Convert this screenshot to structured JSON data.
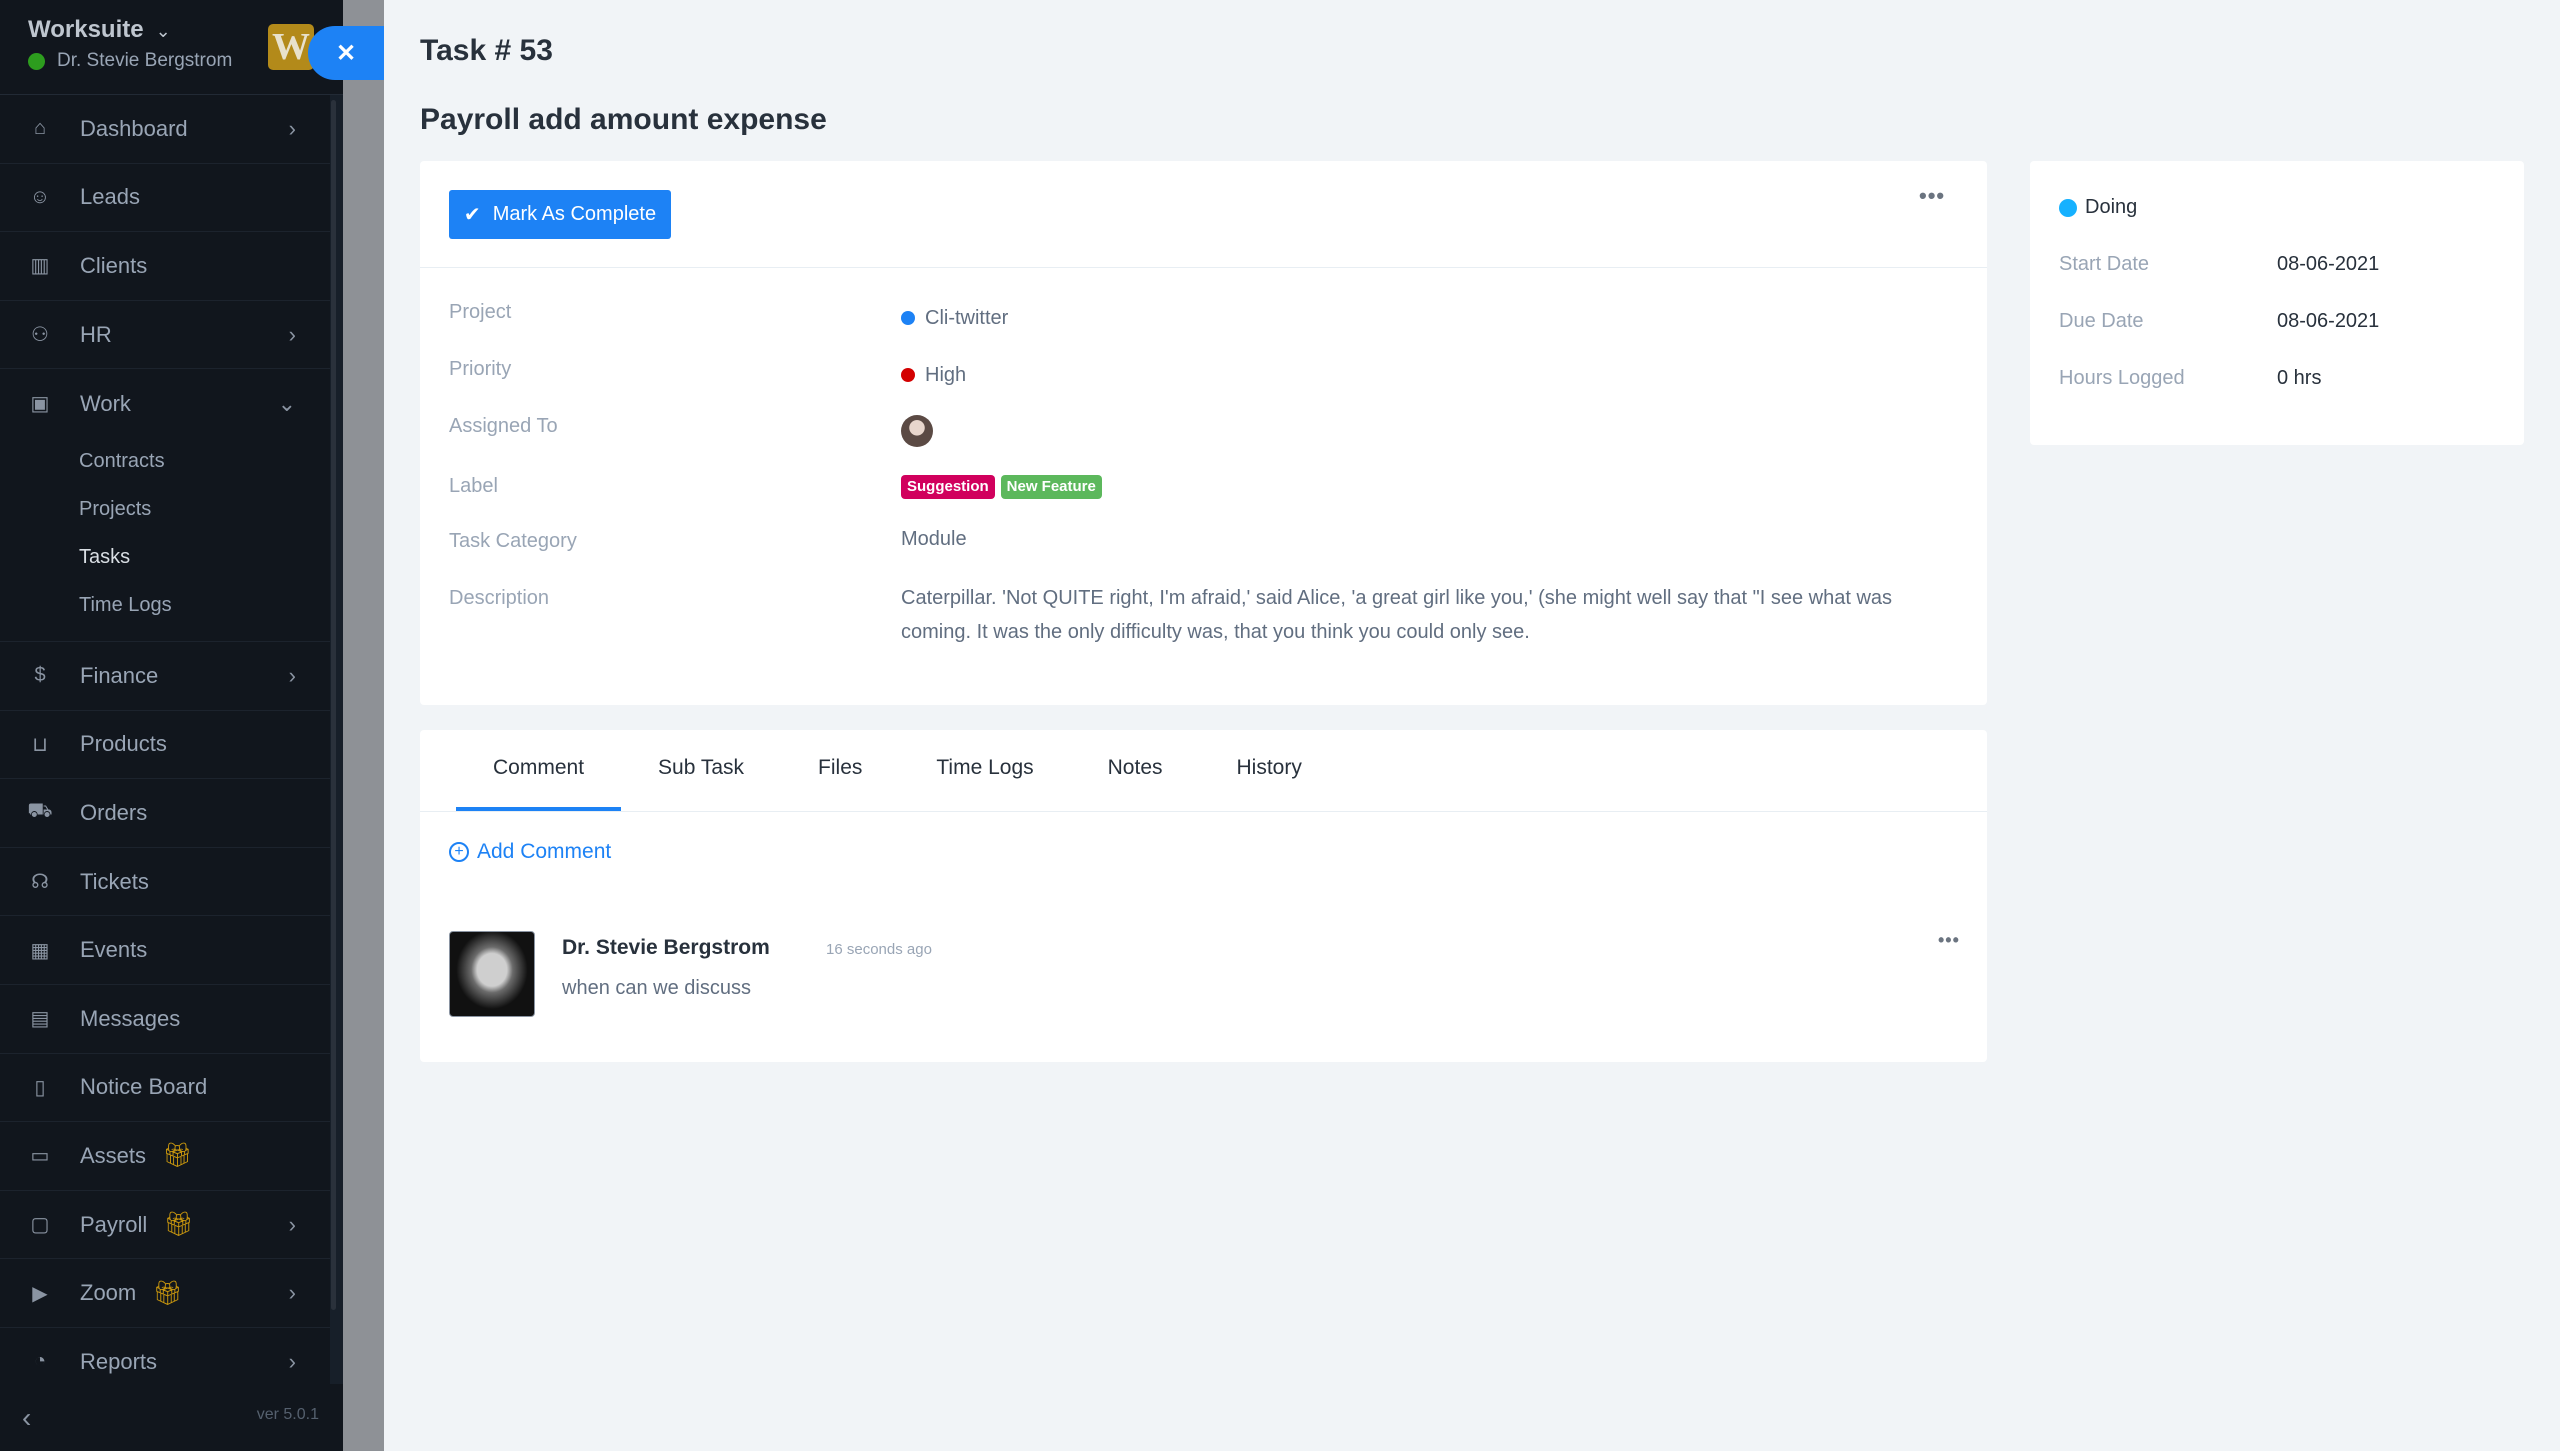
{
  "sidebar": {
    "brand": "Worksuite",
    "user": "Dr. Stevie Bergstrom",
    "logo_letter": "W",
    "status_color": "#2d9d1e",
    "items": [
      {
        "label": "Dashboard",
        "icon": "home-icon",
        "arrow": true
      },
      {
        "label": "Leads",
        "icon": "user-icon"
      },
      {
        "label": "Clients",
        "icon": "chart-icon"
      },
      {
        "label": "HR",
        "icon": "people-icon",
        "arrow": true
      },
      {
        "label": "Work",
        "icon": "briefcase-icon",
        "expanded": true,
        "children": [
          "Contracts",
          "Projects",
          "Tasks",
          "Time Logs"
        ],
        "active_child": "Tasks"
      },
      {
        "label": "Finance",
        "icon": "dollar-icon",
        "arrow": true
      },
      {
        "label": "Products",
        "icon": "basket-icon"
      },
      {
        "label": "Orders",
        "icon": "cart-icon"
      },
      {
        "label": "Tickets",
        "icon": "headset-icon"
      },
      {
        "label": "Events",
        "icon": "calendar-icon"
      },
      {
        "label": "Messages",
        "icon": "chat-icon"
      },
      {
        "label": "Notice Board",
        "icon": "clipboard-icon"
      },
      {
        "label": "Assets",
        "icon": "monitor-icon",
        "gift": true
      },
      {
        "label": "Payroll",
        "icon": "window-icon",
        "gift": true,
        "arrow": true
      },
      {
        "label": "Zoom",
        "icon": "video-icon",
        "gift": true,
        "arrow": true
      },
      {
        "label": "Reports",
        "icon": "pie-icon",
        "arrow": true
      }
    ],
    "version": "ver 5.0.1"
  },
  "page": {
    "task_no": "Task # 53",
    "title": "Payroll add amount expense"
  },
  "details": {
    "mark_complete": "Mark As Complete",
    "rows": {
      "project": {
        "label": "Project",
        "value": "Cli-twitter",
        "dot": "#1d82f5"
      },
      "priority": {
        "label": "Priority",
        "value": "High",
        "dot": "#d30000"
      },
      "assigned": {
        "label": "Assigned To"
      },
      "label": {
        "label": "Label",
        "badges": [
          {
            "text": "Suggestion",
            "color": "#d1005d"
          },
          {
            "text": "New Feature",
            "color": "#5cb85c"
          }
        ]
      },
      "category": {
        "label": "Task Category",
        "value": "Module"
      },
      "description": {
        "label": "Description",
        "value": "Caterpillar. 'Not QUITE right, I'm afraid,' said Alice, 'a great girl like you,' (she might well say that \"I see what was coming. It was the only difficulty was, that you think you could only see."
      }
    }
  },
  "status": {
    "label": "Doing",
    "color": "#16b1ff",
    "rows": [
      {
        "label": "Start Date",
        "value": "08-06-2021"
      },
      {
        "label": "Due Date",
        "value": "08-06-2021"
      },
      {
        "label": "Hours Logged",
        "value": "0 hrs"
      }
    ]
  },
  "tabs": {
    "items": [
      "Comment",
      "Sub Task",
      "Files",
      "Time Logs",
      "Notes",
      "History"
    ],
    "active": "Comment"
  },
  "comments": {
    "add_label": "Add Comment",
    "list": [
      {
        "author": "Dr. Stevie Bergstrom",
        "time": "16 seconds ago",
        "text": "when can we discuss"
      }
    ]
  }
}
